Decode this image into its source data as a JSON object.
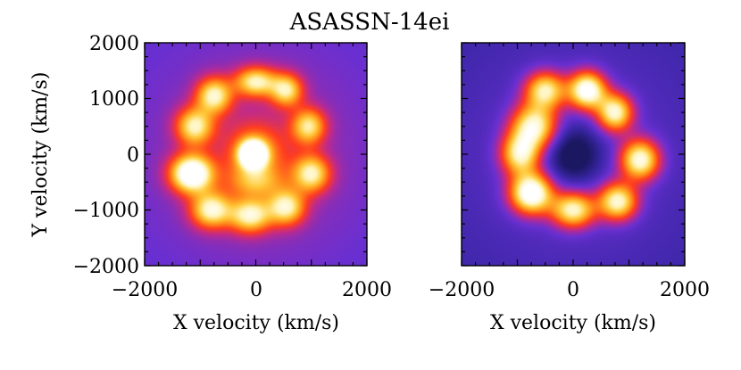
{
  "title": "ASASSN-14ei",
  "colors": {
    "colormap": [
      "#1b1760",
      "#3a26a6",
      "#6a2fd1",
      "#c02a8a",
      "#ff3d1f",
      "#ff8a1a",
      "#ffc93a",
      "#fff4b8",
      "#ffffff"
    ]
  },
  "chart_data": [
    {
      "type": "heatmap",
      "panel": "left",
      "xlabel": "X velocity (km/s)",
      "ylabel": "Y velocity (km/s)",
      "xlim": [
        -2000,
        2000
      ],
      "ylim": [
        -2000,
        2000
      ],
      "xticks": [
        -2000,
        0,
        2000
      ],
      "yticks": [
        -2000,
        -1000,
        0,
        1000,
        2000
      ],
      "xtick_labels": [
        "−2000",
        "0",
        "2000"
      ],
      "ytick_labels": [
        "−2000",
        "−1000",
        "0",
        "1000",
        "2000"
      ],
      "background_intensity": 0.22,
      "blobs": [
        {
          "x": -50,
          "y": 0,
          "sx": 160,
          "sy": 160,
          "a": 1.05
        },
        {
          "x": 0,
          "y": 0,
          "sx": 380,
          "sy": 380,
          "a": 0.35
        },
        {
          "x": -1150,
          "y": -350,
          "sx": 260,
          "sy": 230,
          "a": 0.92
        },
        {
          "x": -1100,
          "y": 500,
          "sx": 230,
          "sy": 230,
          "a": 0.6
        },
        {
          "x": -750,
          "y": 1050,
          "sx": 220,
          "sy": 220,
          "a": 0.62
        },
        {
          "x": 0,
          "y": 1300,
          "sx": 260,
          "sy": 180,
          "a": 0.6
        },
        {
          "x": 550,
          "y": 1150,
          "sx": 200,
          "sy": 200,
          "a": 0.56
        },
        {
          "x": 950,
          "y": 500,
          "sx": 210,
          "sy": 220,
          "a": 0.55
        },
        {
          "x": 1000,
          "y": -350,
          "sx": 230,
          "sy": 230,
          "a": 0.6
        },
        {
          "x": 550,
          "y": -950,
          "sx": 230,
          "sy": 220,
          "a": 0.6
        },
        {
          "x": -100,
          "y": -1100,
          "sx": 260,
          "sy": 210,
          "a": 0.62
        },
        {
          "x": -800,
          "y": -1000,
          "sx": 250,
          "sy": 220,
          "a": 0.64
        },
        {
          "x": 0,
          "y": -500,
          "sx": 350,
          "sy": 200,
          "a": 0.3
        }
      ]
    },
    {
      "type": "heatmap",
      "panel": "right",
      "xlabel": "X velocity (km/s)",
      "ylabel": "",
      "xlim": [
        -2000,
        2000
      ],
      "ylim": [
        -2000,
        2000
      ],
      "xticks": [
        -2000,
        0,
        2000
      ],
      "xtick_labels": [
        "−2000",
        "0",
        "2000"
      ],
      "background_intensity": 0.12,
      "blobs": [
        {
          "x": -700,
          "y": 500,
          "sx": 280,
          "sy": 280,
          "a": 0.72
        },
        {
          "x": -500,
          "y": 1150,
          "sx": 250,
          "sy": 230,
          "a": 0.66
        },
        {
          "x": 250,
          "y": 1150,
          "sx": 230,
          "sy": 230,
          "a": 0.85
        },
        {
          "x": 750,
          "y": 750,
          "sx": 220,
          "sy": 230,
          "a": 0.72
        },
        {
          "x": 1200,
          "y": -100,
          "sx": 240,
          "sy": 250,
          "a": 0.76
        },
        {
          "x": 800,
          "y": -850,
          "sx": 240,
          "sy": 230,
          "a": 0.72
        },
        {
          "x": 0,
          "y": -1000,
          "sx": 270,
          "sy": 220,
          "a": 0.7
        },
        {
          "x": -750,
          "y": -700,
          "sx": 260,
          "sy": 250,
          "a": 0.9
        },
        {
          "x": -950,
          "y": 0,
          "sx": 240,
          "sy": 260,
          "a": 0.66
        },
        {
          "x": 0,
          "y": 0,
          "sx": 380,
          "sy": 380,
          "a": -0.3
        }
      ]
    }
  ]
}
